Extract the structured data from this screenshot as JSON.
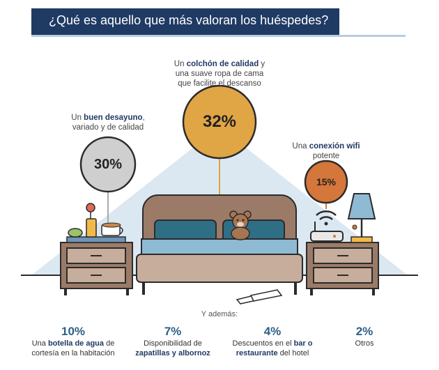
{
  "title": "¿Qué es aquello que más valoran los huéspedes?",
  "also_label": "Y además:",
  "colors": {
    "navy": "#1f3a63",
    "grey_circle": "#cfcfcf",
    "gold_circle": "#e0a544",
    "orange_circle": "#d5763a",
    "value_text": "#2e5f86"
  },
  "chart_data": {
    "type": "bubble",
    "main": [
      {
        "value": 30,
        "label": "30%",
        "caption_pre": "Un ",
        "caption_bold": "buen desayuno",
        "caption_post": ",",
        "caption_line2": "variado y de calidad",
        "color": "#cfcfcf",
        "icon": "breakfast-icon"
      },
      {
        "value": 32,
        "label": "32%",
        "caption_pre": "Un ",
        "caption_bold": "colchón de calidad",
        "caption_post": " y",
        "caption_line2": "una suave ropa de cama",
        "caption_line3": "que facilite el descanso",
        "color": "#e0a544",
        "icon": "bed-icon"
      },
      {
        "value": 15,
        "label": "15%",
        "caption_pre": "Una ",
        "caption_bold": "conexión wifi",
        "caption_post": "",
        "caption_line2": "potente",
        "color": "#d5763a",
        "icon": "wifi-router-icon"
      }
    ],
    "extras": [
      {
        "value": 10,
        "label": "10%",
        "line1_pre": "Una ",
        "line1_bold": "botella de agua",
        "line1_post": " de",
        "line2_pre": "cortesía en la habitación",
        "line2_bold": "",
        "line2_post": ""
      },
      {
        "value": 7,
        "label": "7%",
        "line1_pre": "Disponibilidad de",
        "line1_bold": "",
        "line1_post": "",
        "line2_pre": "",
        "line2_bold": "zapatillas y albornoz",
        "line2_post": ""
      },
      {
        "value": 4,
        "label": "4%",
        "line1_pre": "Descuentos en el ",
        "line1_bold": "bar o",
        "line1_post": "",
        "line2_pre": "",
        "line2_bold": "restaurante",
        "line2_post": " del hotel"
      },
      {
        "value": 2,
        "label": "2%",
        "line1_pre": "Otros",
        "line1_bold": "",
        "line1_post": "",
        "line2_pre": "",
        "line2_bold": "",
        "line2_post": ""
      }
    ]
  }
}
